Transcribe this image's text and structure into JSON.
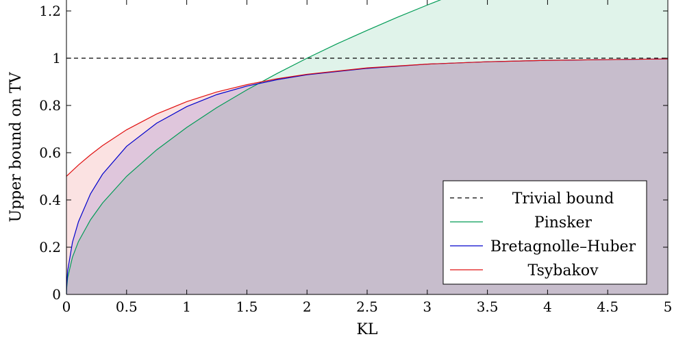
{
  "chart_data": {
    "type": "line",
    "title": "",
    "xlabel": "KL",
    "ylabel": "Upper bound on TV",
    "xlim": [
      0,
      5
    ],
    "ylim": [
      0,
      1.25
    ],
    "x_ticks": [
      0,
      0.5,
      1,
      1.5,
      2,
      2.5,
      3,
      3.5,
      4,
      4.5,
      5
    ],
    "x_tick_labels": [
      "0",
      "0.5",
      "1",
      "1.5",
      "2",
      "2.5",
      "3",
      "3.5",
      "4",
      "4.5",
      "5"
    ],
    "y_ticks": [
      0,
      0.2,
      0.4,
      0.6,
      0.8,
      1,
      1.2
    ],
    "y_tick_labels": [
      "0",
      "0.2",
      "0.4",
      "0.6",
      "0.8",
      "1",
      "1.2"
    ],
    "grid": false,
    "legend_position": "bottom-right",
    "series": [
      {
        "name": "Trivial bound",
        "color": "#000000",
        "style": "dashed",
        "fill": false,
        "x": [
          0,
          5
        ],
        "y": [
          1,
          1
        ]
      },
      {
        "name": "Pinsker",
        "color": "#009b55",
        "style": "solid",
        "fill": true,
        "x": [
          0,
          0.001,
          0.01,
          0.05,
          0.1,
          0.2,
          0.3,
          0.5,
          0.75,
          1,
          1.25,
          1.5,
          1.75,
          2,
          2.25,
          2.5,
          2.75,
          3,
          3.125
        ],
        "y": [
          0,
          0.022,
          0.071,
          0.158,
          0.224,
          0.316,
          0.387,
          0.5,
          0.612,
          0.707,
          0.791,
          0.866,
          0.935,
          1.0,
          1.061,
          1.118,
          1.173,
          1.225,
          1.25
        ]
      },
      {
        "name": "Bretagnolle–Huber",
        "color": "#0000cc",
        "style": "solid",
        "fill": true,
        "x": [
          0,
          0.001,
          0.01,
          0.05,
          0.1,
          0.2,
          0.3,
          0.5,
          0.75,
          1,
          1.25,
          1.5,
          1.75,
          2,
          2.5,
          3,
          3.5,
          4,
          4.5,
          5
        ],
        "y": [
          0,
          0.032,
          0.1,
          0.221,
          0.308,
          0.426,
          0.509,
          0.627,
          0.725,
          0.795,
          0.846,
          0.882,
          0.909,
          0.93,
          0.957,
          0.975,
          0.985,
          0.991,
          0.994,
          0.997
        ]
      },
      {
        "name": "Tsybakov",
        "color": "#e01010",
        "style": "solid",
        "fill": true,
        "x": [
          0,
          0.01,
          0.05,
          0.1,
          0.2,
          0.3,
          0.5,
          0.75,
          1,
          1.25,
          1.5,
          1.75,
          2,
          2.5,
          3,
          3.5,
          4,
          4.5,
          5
        ],
        "y": [
          0.5,
          0.505,
          0.524,
          0.548,
          0.591,
          0.63,
          0.697,
          0.764,
          0.816,
          0.857,
          0.888,
          0.913,
          0.932,
          0.959,
          0.975,
          0.985,
          0.991,
          0.994,
          0.997
        ]
      }
    ]
  }
}
